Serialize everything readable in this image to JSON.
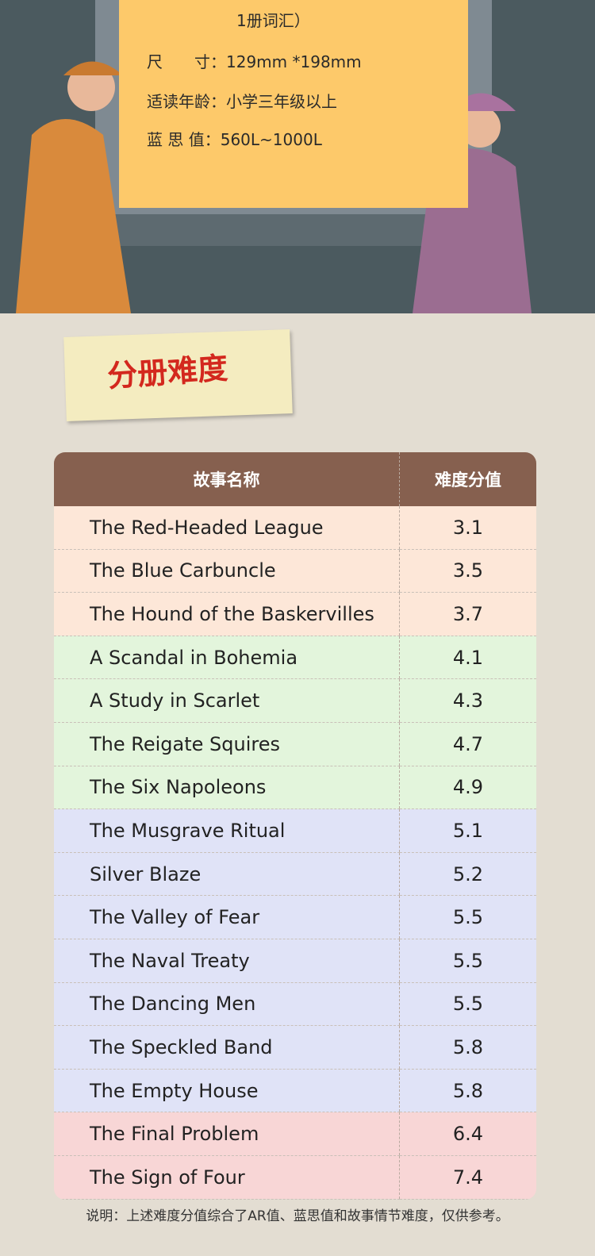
{
  "info": {
    "vocab_tail": "1册词汇）",
    "lines": [
      {
        "label": "尺　　寸：",
        "value": "129mm *198mm"
      },
      {
        "label": "适读年龄：",
        "value": "小学三年级以上"
      },
      {
        "label": "蓝 思 值：",
        "value": "560L~1000L"
      }
    ]
  },
  "section_title": "分册难度",
  "table": {
    "header": [
      "故事名称",
      "难度分值"
    ],
    "rows": [
      [
        "The Red-Headed League",
        3.1
      ],
      [
        "The Blue Carbuncle",
        3.5
      ],
      [
        "The Hound of the Baskervilles",
        3.7
      ],
      [
        "A Scandal in Bohemia",
        4.1
      ],
      [
        "A Study in Scarlet",
        4.3
      ],
      [
        "The Reigate Squires",
        4.7
      ],
      [
        "The Six Napoleons",
        4.9
      ],
      [
        "The Musgrave Ritual",
        5.1
      ],
      [
        "Silver Blaze",
        5.2
      ],
      [
        "The Valley of Fear",
        5.5
      ],
      [
        "The Naval Treaty",
        5.5
      ],
      [
        "The Dancing Men",
        5.5
      ],
      [
        "The Speckled Band",
        5.8
      ],
      [
        "The Empty House",
        5.8
      ],
      [
        "The Final Problem",
        6.4
      ],
      [
        "The Sign of Four",
        7.4
      ]
    ]
  },
  "footnote": "说明：上述难度分值综合了AR值、蓝思值和故事情节难度，仅供参考。"
}
